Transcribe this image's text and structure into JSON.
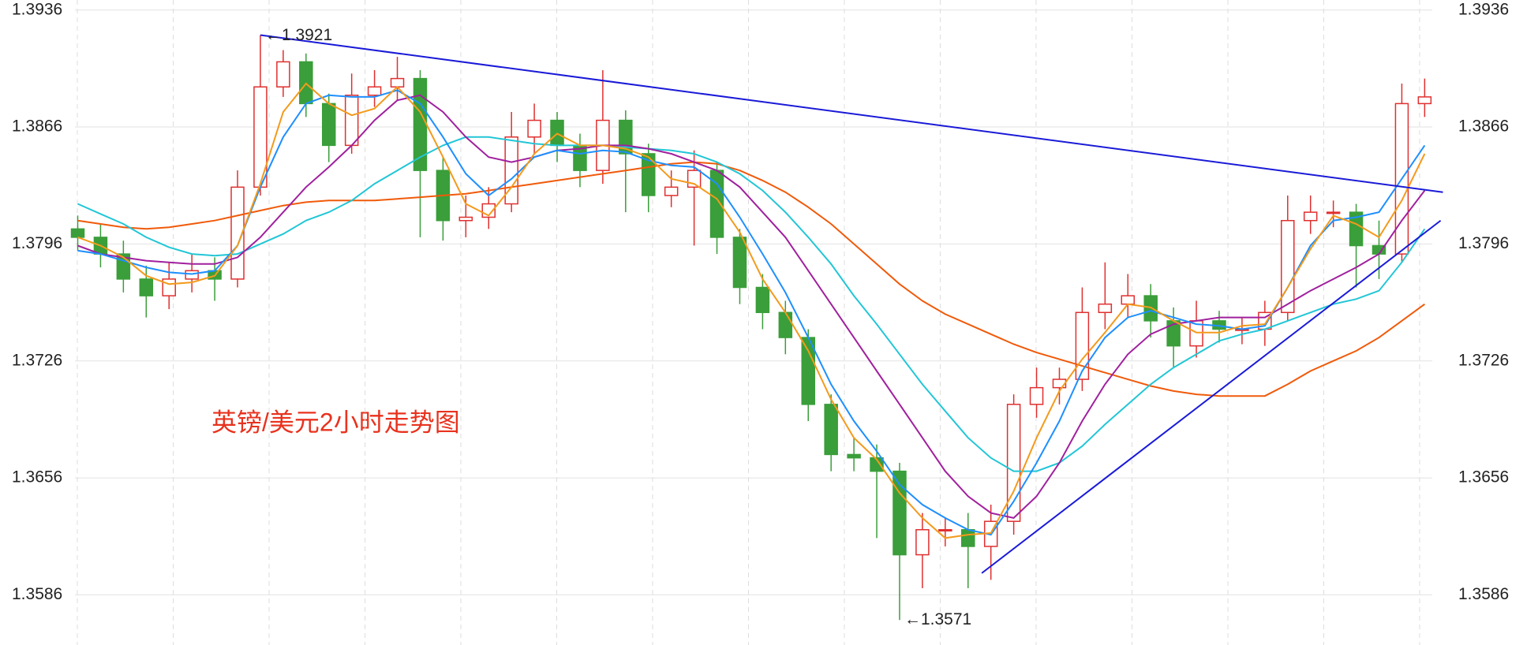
{
  "chart_data": {
    "type": "candlestick",
    "title": "英镑/美元2小时走势图",
    "ylim": [
      1.3556,
      1.3942
    ],
    "yticks": [
      1.3586,
      1.3656,
      1.3726,
      1.3796,
      1.3866,
      1.3936
    ],
    "grid": true,
    "up_color": "#e02f2f",
    "down_color": "#3a9e3a",
    "open": [
      1.3805,
      1.38,
      1.379,
      1.3775,
      1.3765,
      1.3775,
      1.378,
      1.3775,
      1.383,
      1.389,
      1.3905,
      1.388,
      1.3855,
      1.3885,
      1.389,
      1.3895,
      1.384,
      1.381,
      1.3812,
      1.382,
      1.386,
      1.387,
      1.3855,
      1.384,
      1.387,
      1.385,
      1.3825,
      1.383,
      1.384,
      1.38,
      1.377,
      1.3755,
      1.374,
      1.37,
      1.367,
      1.3668,
      1.366,
      1.361,
      1.3625,
      1.3625,
      1.3615,
      1.363,
      1.37,
      1.371,
      1.3715,
      1.3755,
      1.376,
      1.3765,
      1.375,
      1.3735,
      1.375,
      1.3745,
      1.3745,
      1.3755,
      1.381,
      1.3815,
      1.3815,
      1.3795,
      1.379,
      1.388
    ],
    "high": [
      1.3813,
      1.3808,
      1.3798,
      1.3783,
      1.3785,
      1.379,
      1.3788,
      1.384,
      1.3921,
      1.3912,
      1.391,
      1.3886,
      1.3898,
      1.39,
      1.3908,
      1.39,
      1.3848,
      1.3825,
      1.383,
      1.3875,
      1.388,
      1.3875,
      1.3862,
      1.39,
      1.3876,
      1.3856,
      1.384,
      1.3852,
      1.3845,
      1.3805,
      1.3778,
      1.3762,
      1.3745,
      1.3706,
      1.368,
      1.3676,
      1.3665,
      1.3635,
      1.3632,
      1.3635,
      1.364,
      1.3706,
      1.3722,
      1.3722,
      1.377,
      1.3785,
      1.3778,
      1.3772,
      1.3758,
      1.3762,
      1.3756,
      1.3752,
      1.3762,
      1.3825,
      1.3825,
      1.3822,
      1.382,
      1.381,
      1.3892,
      1.3895
    ],
    "low": [
      1.3792,
      1.3782,
      1.3767,
      1.3752,
      1.3757,
      1.3767,
      1.3762,
      1.377,
      1.3825,
      1.3884,
      1.3872,
      1.3845,
      1.385,
      1.3878,
      1.3882,
      1.38,
      1.3798,
      1.38,
      1.3805,
      1.3815,
      1.385,
      1.3845,
      1.383,
      1.3832,
      1.3815,
      1.3815,
      1.3818,
      1.3795,
      1.379,
      1.376,
      1.3745,
      1.373,
      1.369,
      1.366,
      1.366,
      1.362,
      1.3571,
      1.359,
      1.3615,
      1.359,
      1.3595,
      1.3622,
      1.3692,
      1.37,
      1.3708,
      1.3745,
      1.3752,
      1.374,
      1.3722,
      1.3728,
      1.3737,
      1.3736,
      1.3735,
      1.375,
      1.3802,
      1.3806,
      1.377,
      1.3775,
      1.3785,
      1.3872
    ],
    "close": [
      1.38,
      1.379,
      1.3775,
      1.3765,
      1.3775,
      1.378,
      1.3775,
      1.383,
      1.389,
      1.3905,
      1.388,
      1.3855,
      1.3885,
      1.389,
      1.3895,
      1.384,
      1.381,
      1.3812,
      1.382,
      1.386,
      1.387,
      1.3855,
      1.384,
      1.387,
      1.385,
      1.3825,
      1.383,
      1.384,
      1.38,
      1.377,
      1.3755,
      1.374,
      1.37,
      1.367,
      1.3668,
      1.366,
      1.361,
      1.3625,
      1.3625,
      1.3615,
      1.363,
      1.37,
      1.371,
      1.3715,
      1.3755,
      1.376,
      1.3765,
      1.375,
      1.3735,
      1.375,
      1.3745,
      1.3745,
      1.3755,
      1.381,
      1.3815,
      1.3815,
      1.3795,
      1.379,
      1.388,
      1.3884
    ],
    "series": [
      {
        "color": "#f05a0a",
        "values": [
          1.381,
          1.3808,
          1.3806,
          1.3805,
          1.3806,
          1.3808,
          1.381,
          1.3813,
          1.3816,
          1.3819,
          1.3821,
          1.3822,
          1.3822,
          1.3822,
          1.3823,
          1.3824,
          1.3825,
          1.3826,
          1.3828,
          1.383,
          1.3832,
          1.3834,
          1.3836,
          1.3838,
          1.384,
          1.3842,
          1.3844,
          1.3845,
          1.3844,
          1.384,
          1.3834,
          1.3827,
          1.3818,
          1.3808,
          1.3796,
          1.3784,
          1.3772,
          1.3762,
          1.3754,
          1.3748,
          1.3742,
          1.3736,
          1.3731,
          1.3727,
          1.3723,
          1.3719,
          1.3715,
          1.3711,
          1.3708,
          1.3706,
          1.3705,
          1.3705,
          1.3705,
          1.3712,
          1.372,
          1.3726,
          1.3732,
          1.374,
          1.375,
          1.376
        ]
      },
      {
        "color": "#22c6d6",
        "values": [
          1.382,
          1.3814,
          1.3808,
          1.38,
          1.3794,
          1.379,
          1.3789,
          1.379,
          1.3796,
          1.3802,
          1.381,
          1.3815,
          1.3822,
          1.3832,
          1.384,
          1.3848,
          1.3855,
          1.386,
          1.386,
          1.3858,
          1.3856,
          1.3855,
          1.3855,
          1.3855,
          1.3854,
          1.3853,
          1.3852,
          1.385,
          1.3845,
          1.3838,
          1.3828,
          1.3815,
          1.38,
          1.3784,
          1.3765,
          1.3748,
          1.373,
          1.3712,
          1.3696,
          1.368,
          1.3668,
          1.366,
          1.366,
          1.3665,
          1.3675,
          1.3688,
          1.37,
          1.3712,
          1.3722,
          1.373,
          1.3738,
          1.3742,
          1.3745,
          1.375,
          1.3755,
          1.376,
          1.3763,
          1.3768,
          1.3785,
          1.3805
        ]
      },
      {
        "color": "#a0209e",
        "values": [
          1.3795,
          1.379,
          1.3788,
          1.3786,
          1.3785,
          1.3784,
          1.3784,
          1.3788,
          1.38,
          1.3815,
          1.383,
          1.3842,
          1.3855,
          1.387,
          1.3882,
          1.3885,
          1.3875,
          1.386,
          1.3848,
          1.3845,
          1.3848,
          1.3852,
          1.3853,
          1.3855,
          1.3855,
          1.3853,
          1.385,
          1.3845,
          1.384,
          1.383,
          1.3815,
          1.38,
          1.378,
          1.376,
          1.374,
          1.372,
          1.37,
          1.368,
          1.366,
          1.3645,
          1.3635,
          1.3632,
          1.3645,
          1.3665,
          1.369,
          1.3712,
          1.373,
          1.3742,
          1.3748,
          1.375,
          1.3752,
          1.3752,
          1.3752,
          1.376,
          1.3768,
          1.3775,
          1.3782,
          1.379,
          1.381,
          1.3828
        ]
      },
      {
        "color": "#1e8fff",
        "values": [
          1.3792,
          1.379,
          1.3786,
          1.3782,
          1.3779,
          1.3778,
          1.378,
          1.3795,
          1.383,
          1.386,
          1.388,
          1.3885,
          1.3884,
          1.3884,
          1.3888,
          1.388,
          1.386,
          1.3838,
          1.3825,
          1.3835,
          1.3848,
          1.3852,
          1.385,
          1.3852,
          1.3851,
          1.3846,
          1.3843,
          1.3842,
          1.3832,
          1.3812,
          1.379,
          1.3767,
          1.374,
          1.3712,
          1.369,
          1.3672,
          1.3652,
          1.364,
          1.3632,
          1.3625,
          1.3622,
          1.3642,
          1.3665,
          1.369,
          1.372,
          1.374,
          1.3752,
          1.3756,
          1.3752,
          1.3748,
          1.3747,
          1.3745,
          1.3747,
          1.377,
          1.3795,
          1.381,
          1.3812,
          1.3815,
          1.3835,
          1.3855
        ]
      },
      {
        "color": "#f39a1c",
        "values": [
          1.38,
          1.3795,
          1.3788,
          1.3777,
          1.3772,
          1.3773,
          1.3777,
          1.3795,
          1.3832,
          1.3875,
          1.3892,
          1.388,
          1.3873,
          1.3877,
          1.389,
          1.3875,
          1.3848,
          1.382,
          1.3813,
          1.383,
          1.385,
          1.3862,
          1.3855,
          1.3855,
          1.3853,
          1.3848,
          1.3835,
          1.3832,
          1.3823,
          1.3803,
          1.3775,
          1.3755,
          1.3732,
          1.3703,
          1.368,
          1.3667,
          1.3647,
          1.3632,
          1.362,
          1.3622,
          1.3623,
          1.3648,
          1.368,
          1.3708,
          1.3727,
          1.3743,
          1.376,
          1.3758,
          1.375,
          1.3743,
          1.3743,
          1.3747,
          1.3748,
          1.377,
          1.3793,
          1.3813,
          1.3808,
          1.38,
          1.3822,
          1.385
        ]
      }
    ],
    "trendlines": [
      {
        "color": "#1a1ad8",
        "from": [
          8,
          1.3921
        ],
        "to": [
          59.8,
          1.3827
        ]
      },
      {
        "color": "#1a1ad8",
        "from": [
          39.6,
          1.3599
        ],
        "to": [
          59.7,
          1.381
        ]
      }
    ],
    "annotations": [
      {
        "text": "←1.3921",
        "x": 8,
        "y": 1.3921
      },
      {
        "text": "←1.3571",
        "x": 36,
        "y": 1.3571
      }
    ]
  }
}
